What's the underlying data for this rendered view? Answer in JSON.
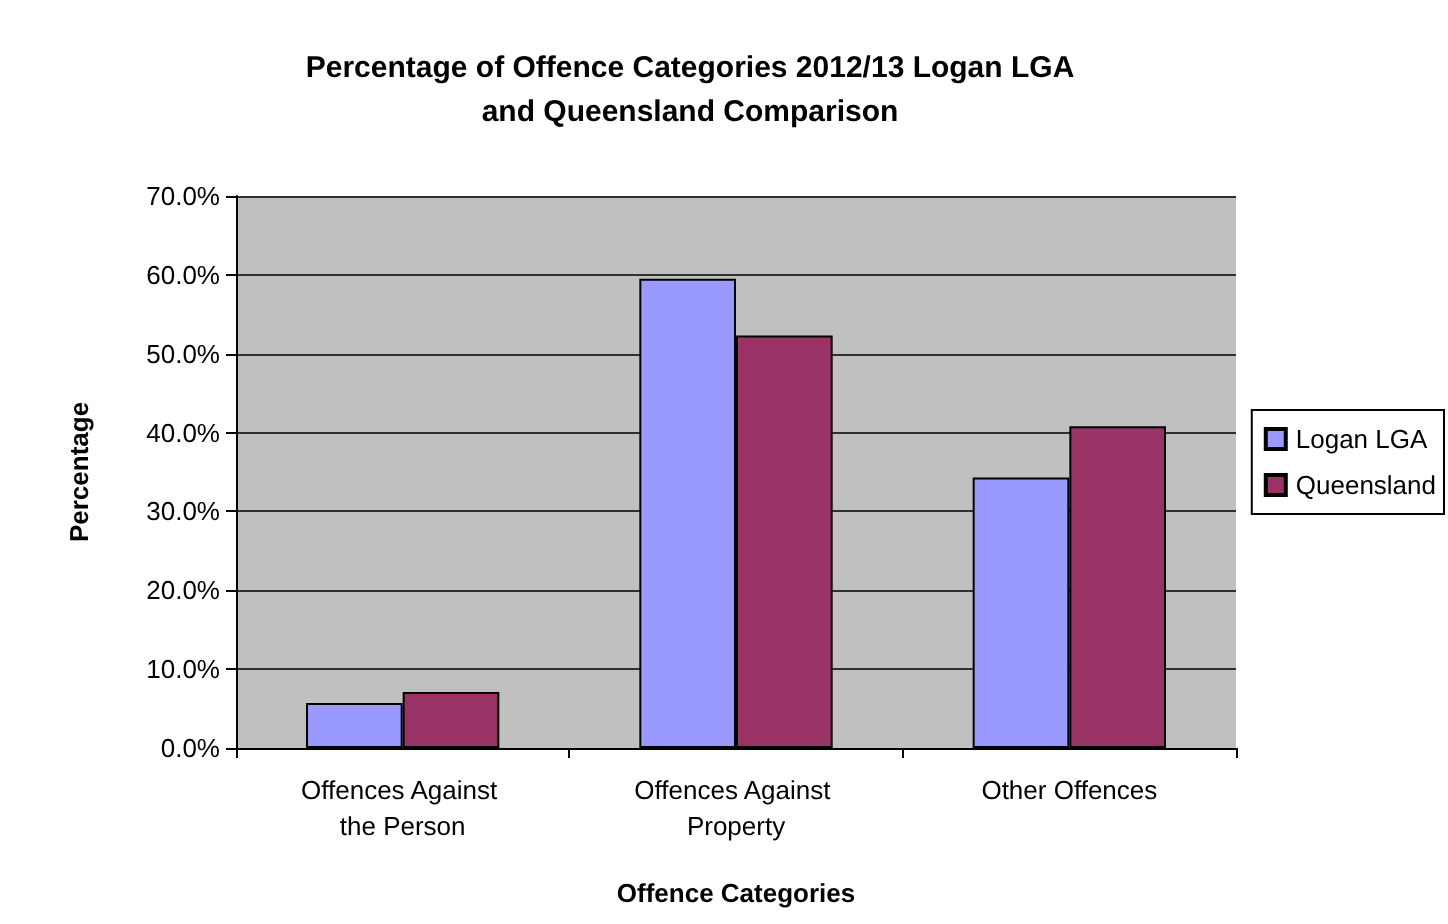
{
  "chart_data": {
    "type": "bar",
    "title": "Percentage of Offence Categories 2012/13 Logan LGA\nand Queensland Comparison",
    "xlabel": "Offence Categories",
    "ylabel": "Percentage",
    "categories": [
      "Offences Against the Person",
      "Offences Against Property",
      "Other Offences"
    ],
    "series": [
      {
        "name": "Logan LGA",
        "color": "#9999ff",
        "values": [
          5.7,
          59.5,
          34.3
        ]
      },
      {
        "name": "Queensland",
        "color": "#993366",
        "values": [
          7.1,
          52.3,
          40.8
        ]
      }
    ],
    "ylim": [
      0,
      70
    ],
    "yticks": [
      {
        "value": 0,
        "label": "0.0%"
      },
      {
        "value": 10,
        "label": "10.0%"
      },
      {
        "value": 20,
        "label": "20.0%"
      },
      {
        "value": 30,
        "label": "30.0%"
      },
      {
        "value": 40,
        "label": "40.0%"
      },
      {
        "value": 50,
        "label": "50.0%"
      },
      {
        "value": 60,
        "label": "60.0%"
      },
      {
        "value": 70,
        "label": "70.0%"
      }
    ],
    "grid": "y",
    "legend": "right"
  }
}
